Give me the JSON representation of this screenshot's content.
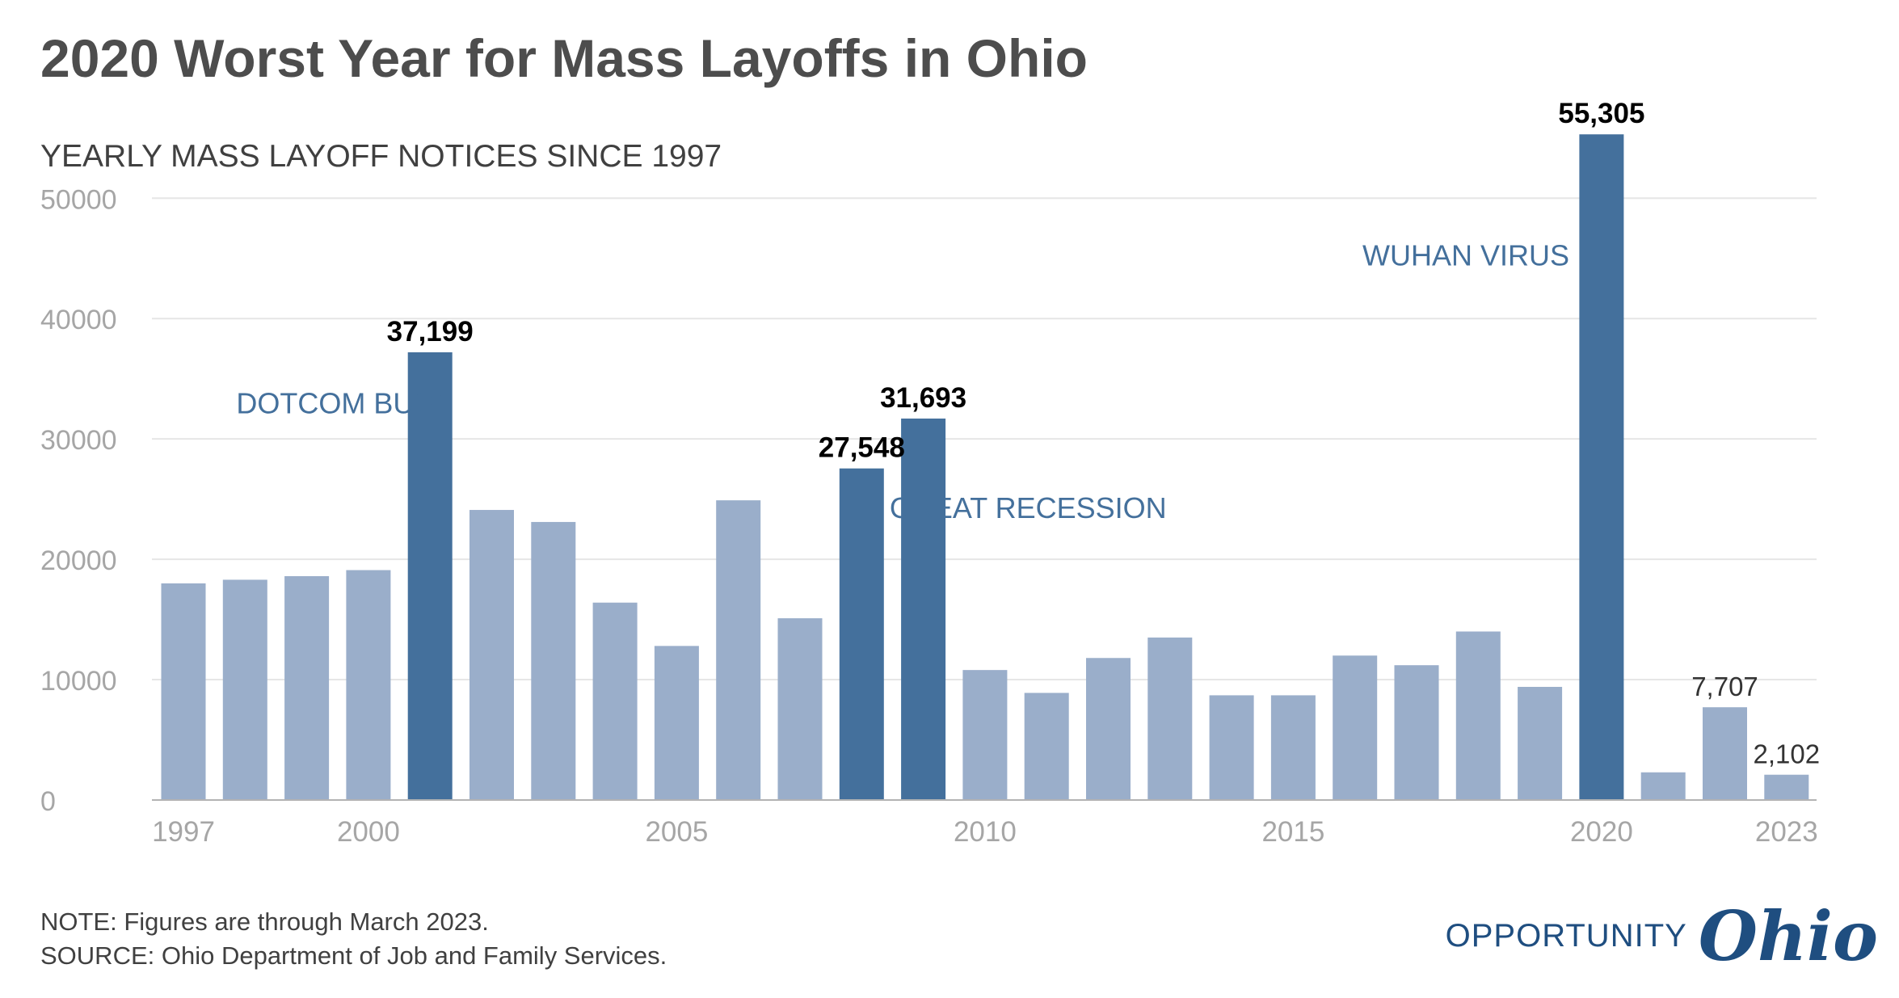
{
  "title": "2020 Worst Year for Mass Layoffs in Ohio",
  "note_line1": "NOTE: Figures are through March 2023.",
  "note_line2": "SOURCE: Ohio Department of Job and Family Services.",
  "logo": {
    "word": "OPPORTUNITY",
    "script": "Ohio"
  },
  "colors": {
    "highlight": "#44709c",
    "normal": "#9aaeca",
    "grid": "#e6e6e6",
    "axis_text": "#a6a6a6",
    "annotation": "#44709c"
  },
  "chart_data": {
    "type": "bar",
    "title": "2020 Worst Year for Mass Layoffs in Ohio",
    "subtitle": "YEARLY MASS LAYOFF NOTICES SINCE 1997",
    "xlabel": "",
    "ylabel": "",
    "ylim": [
      0,
      57000
    ],
    "yticks": [
      0,
      10000,
      20000,
      30000,
      40000,
      50000
    ],
    "ytick_labels": [
      "0",
      "10000",
      "20000",
      "30000",
      "40000",
      "50000"
    ],
    "grid": true,
    "x_tick_years": [
      1997,
      2000,
      2005,
      2010,
      2015,
      2020,
      2023
    ],
    "x_tick_labels": [
      "1997",
      "2000",
      "2005",
      "2010",
      "2015",
      "2020",
      "2023"
    ],
    "categories": [
      1997,
      1998,
      1999,
      2000,
      2001,
      2002,
      2003,
      2004,
      2005,
      2006,
      2007,
      2008,
      2009,
      2010,
      2011,
      2012,
      2013,
      2014,
      2015,
      2016,
      2017,
      2018,
      2019,
      2020,
      2021,
      2022,
      2023
    ],
    "values": [
      18000,
      18300,
      18600,
      19100,
      37199,
      24100,
      23100,
      16400,
      12800,
      24900,
      15100,
      27548,
      31693,
      10800,
      8900,
      11800,
      13500,
      8700,
      8700,
      12000,
      11200,
      14000,
      9400,
      55305,
      2300,
      7707,
      2102
    ],
    "highlighted": [
      2001,
      2008,
      2009,
      2020
    ],
    "data_labels": [
      {
        "year": 2001,
        "text": "37,199",
        "bold": true
      },
      {
        "year": 2008,
        "text": "27,548",
        "bold": true
      },
      {
        "year": 2009,
        "text": "31,693",
        "bold": true
      },
      {
        "year": 2020,
        "text": "55,305",
        "bold": true
      },
      {
        "year": 2022,
        "text": "7,707",
        "bold": false
      },
      {
        "year": 2023,
        "text": "2,102",
        "bold": false
      }
    ],
    "annotations": [
      {
        "text": "DOTCOM BUST",
        "year": 1999.6,
        "value": 33000,
        "anchor": "middle"
      },
      {
        "text": "GREAT RECESSION",
        "year": 2010.7,
        "value": 24300,
        "anchor": "middle"
      },
      {
        "text": "WUHAN VIRUS",
        "year": 2017.8,
        "value": 45300,
        "anchor": "middle"
      }
    ]
  }
}
